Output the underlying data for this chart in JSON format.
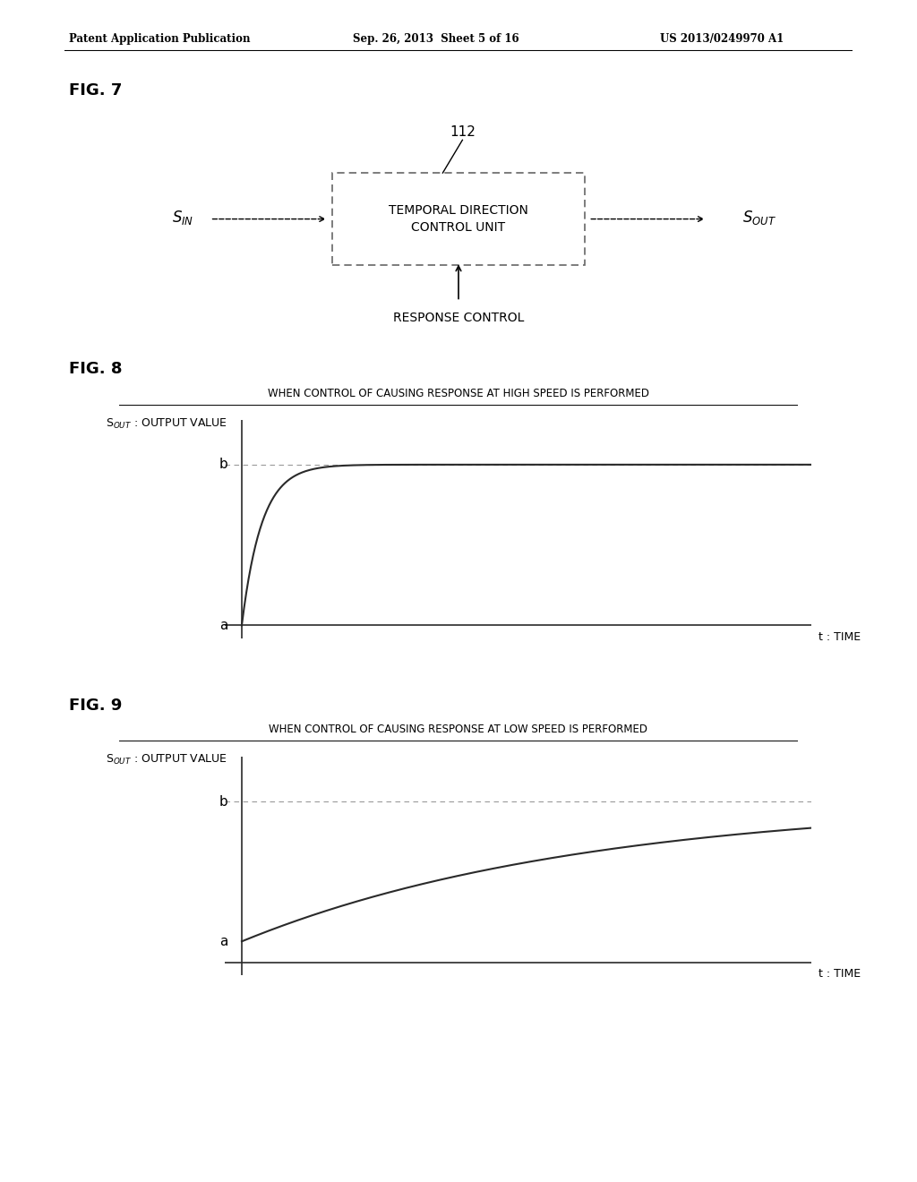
{
  "bg_color": "#ffffff",
  "header_left": "Patent Application Publication",
  "header_center": "Sep. 26, 2013  Sheet 5 of 16",
  "header_right": "US 2013/0249970 A1",
  "fig7_label": "FIG. 7",
  "fig7_box_label": "112",
  "fig7_box_text": "TEMPORAL DIRECTION\nCONTROL UNIT",
  "fig7_response": "RESPONSE CONTROL",
  "fig8_label": "FIG. 8",
  "fig8_title": "WHEN CONTROL OF CAUSING RESPONSE AT HIGH SPEED IS PERFORMED",
  "fig8_ylabel_text": "S$_{OUT}$ : OUTPUT VALUE",
  "fig8_xlabel": "t : TIME",
  "fig8_a_label": "a",
  "fig8_b_label": "b",
  "fig9_label": "FIG. 9",
  "fig9_title": "WHEN CONTROL OF CAUSING RESPONSE AT LOW SPEED IS PERFORMED",
  "fig9_ylabel_text": "S$_{OUT}$ : OUTPUT VALUE",
  "fig9_xlabel": "t : TIME",
  "fig9_a_label": "a",
  "fig9_b_label": "b",
  "curve_color": "#2a2a2a",
  "dash_color": "#999999",
  "axis_color": "#2a2a2a",
  "text_color": "#000000",
  "box_border_color": "#666666",
  "header_line_color": "#000000"
}
